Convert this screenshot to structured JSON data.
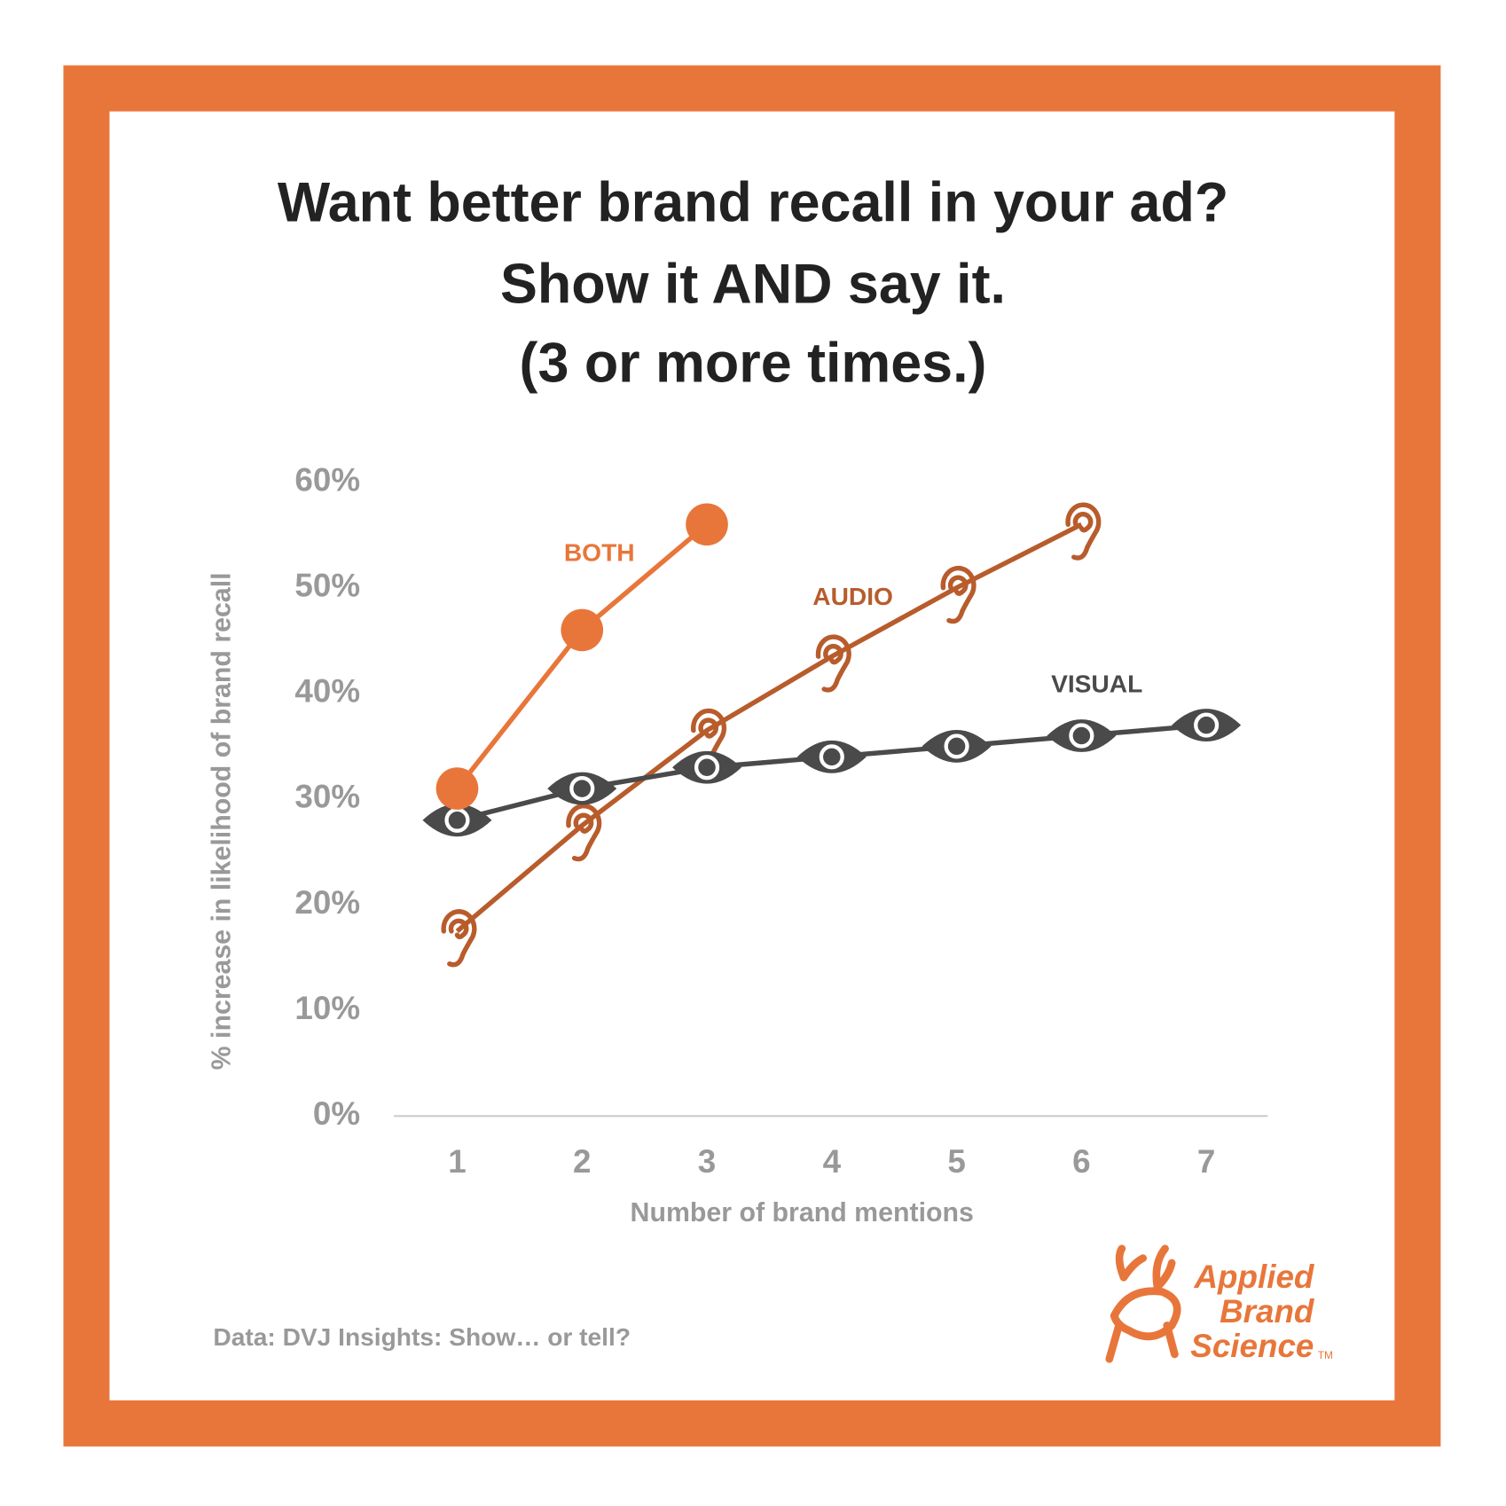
{
  "chart_data": {
    "type": "line",
    "title": "Want better brand recall in your ad?",
    "subtitle": [
      "Show it AND say it.",
      "(3 or more times.)"
    ],
    "x": [
      1,
      2,
      3,
      4,
      5,
      6,
      7
    ],
    "x_label": "Number of brand mentions",
    "y_label": "% increase in likelihood of brand recall",
    "ylim": [
      0,
      60
    ],
    "yticks": [
      {
        "value": 0,
        "label": "0%"
      },
      {
        "value": 10,
        "label": "10%"
      },
      {
        "value": 20,
        "label": "20%"
      },
      {
        "value": 30,
        "label": "30%"
      },
      {
        "value": 40,
        "label": "40%"
      },
      {
        "value": 50,
        "label": "50%"
      },
      {
        "value": 60,
        "label": "60%"
      }
    ],
    "series": [
      {
        "name": "BOTH",
        "color": "#e8763a",
        "marker": "circle",
        "values": [
          31,
          46,
          56,
          null,
          null,
          null,
          null
        ]
      },
      {
        "name": "AUDIO",
        "color": "#b85c2c",
        "marker": "ear",
        "values": [
          17.5,
          27.5,
          36.5,
          43.5,
          50,
          56,
          null
        ]
      },
      {
        "name": "VISUAL",
        "color": "#4a4a4a",
        "marker": "eye",
        "values": [
          28,
          31,
          33,
          34,
          35,
          36,
          37
        ]
      }
    ]
  },
  "source": "Data: DVJ Insights: Show… or tell?",
  "logo": {
    "lines": [
      "Applied",
      "Brand",
      "Science"
    ],
    "mark": "TM"
  }
}
